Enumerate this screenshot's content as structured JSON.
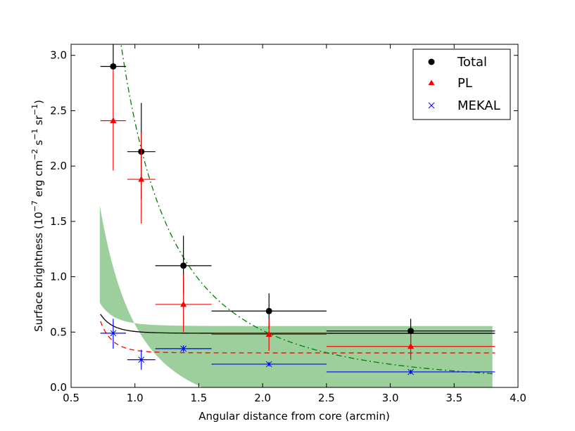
{
  "chart_data": {
    "type": "scatter",
    "xlabel": "Angular distance from core (arcmin)",
    "ylabel_parts": {
      "pre": "Surface brightness (10",
      "exp1": "−7",
      "mid1": " erg cm",
      "exp2": "−2",
      "mid2": " s",
      "exp3": "−1",
      "mid3": " sr",
      "exp4": "−1",
      "post": ")"
    },
    "xlim": [
      0.5,
      4.0
    ],
    "ylim": [
      0.0,
      3.1
    ],
    "xticks": [
      0.5,
      1.0,
      1.5,
      2.0,
      2.5,
      3.0,
      3.5,
      4.0
    ],
    "xtick_labels": [
      "0.5",
      "1.0",
      "1.5",
      "2.0",
      "2.5",
      "3.0",
      "3.5",
      "4.0"
    ],
    "yticks": [
      0.0,
      0.5,
      1.0,
      1.5,
      2.0,
      2.5,
      3.0
    ],
    "ytick_labels": [
      "0.0",
      "0.5",
      "1.0",
      "1.5",
      "2.0",
      "2.5",
      "3.0"
    ],
    "legend_position": "top-right",
    "series": [
      {
        "name": "Total",
        "marker": "circle",
        "color": "#000000",
        "points": [
          {
            "x": 0.83,
            "y": 2.9,
            "xlo": 0.73,
            "xhi": 0.93,
            "ylo": 2.9,
            "yhi": 3.1
          },
          {
            "x": 1.05,
            "y": 2.13,
            "xlo": 0.94,
            "xhi": 1.16,
            "ylo": 1.7,
            "yhi": 2.57
          },
          {
            "x": 1.38,
            "y": 1.1,
            "xlo": 1.16,
            "xhi": 1.6,
            "ylo": 0.85,
            "yhi": 1.37
          },
          {
            "x": 2.05,
            "y": 0.69,
            "xlo": 1.6,
            "xhi": 2.5,
            "ylo": 0.53,
            "yhi": 0.85
          },
          {
            "x": 3.16,
            "y": 0.51,
            "xlo": 2.5,
            "xhi": 3.82,
            "ylo": 0.4,
            "yhi": 0.62
          }
        ]
      },
      {
        "name": "PL",
        "marker": "triangle",
        "color": "#ff0000",
        "points": [
          {
            "x": 0.83,
            "y": 2.41,
            "xlo": 0.73,
            "xhi": 0.93,
            "ylo": 1.96,
            "yhi": 2.87
          },
          {
            "x": 1.05,
            "y": 1.88,
            "xlo": 0.94,
            "xhi": 1.16,
            "ylo": 1.48,
            "yhi": 2.3
          },
          {
            "x": 1.38,
            "y": 0.75,
            "xlo": 1.16,
            "xhi": 1.6,
            "ylo": 0.5,
            "yhi": 1.02
          },
          {
            "x": 2.05,
            "y": 0.48,
            "xlo": 1.6,
            "xhi": 2.5,
            "ylo": 0.33,
            "yhi": 0.62
          },
          {
            "x": 3.16,
            "y": 0.37,
            "xlo": 2.5,
            "xhi": 3.82,
            "ylo": 0.25,
            "yhi": 0.48
          }
        ]
      },
      {
        "name": "MEKAL",
        "marker": "x",
        "color": "#0000ff",
        "points": [
          {
            "x": 0.83,
            "y": 0.49,
            "xlo": 0.73,
            "xhi": 0.93,
            "ylo": 0.35,
            "yhi": 0.62
          },
          {
            "x": 1.05,
            "y": 0.25,
            "xlo": 0.94,
            "xhi": 1.16,
            "ylo": 0.16,
            "yhi": 0.34
          },
          {
            "x": 1.38,
            "y": 0.35,
            "xlo": 1.16,
            "xhi": 1.6,
            "ylo": 0.32,
            "yhi": 0.38
          },
          {
            "x": 2.05,
            "y": 0.21,
            "xlo": 1.6,
            "xhi": 2.5,
            "ylo": 0.19,
            "yhi": 0.23
          },
          {
            "x": 3.16,
            "y": 0.14,
            "xlo": 2.5,
            "xhi": 3.82,
            "ylo": 0.12,
            "yhi": 0.16
          }
        ]
      }
    ],
    "model_curves": [
      {
        "name": "total-model",
        "style": "solid",
        "color": "#000000",
        "x_range": [
          0.73,
          3.82
        ],
        "a": 0.4889,
        "b": 0.01656,
        "n": 7.45
      },
      {
        "name": "pl-model",
        "style": "dashed",
        "color": "#ff0000",
        "x_range": [
          0.73,
          3.82
        ],
        "a": 0.3117,
        "b": 0.02425,
        "n": 7.84
      },
      {
        "name": "mekal-model",
        "style": "dashdot",
        "color": "#008000",
        "x_range": [
          0.73,
          3.82
        ],
        "a": 0.0,
        "b": 2.4,
        "n": 2.22
      }
    ],
    "shaded_band": {
      "color": "#5aaf5a",
      "opacity": 0.6,
      "x_range": [
        0.725,
        3.8
      ],
      "upper": {
        "a": 0.5541,
        "b": 0.026,
        "n": 6.5
      },
      "lower": {
        "a": -0.3,
        "b": 0.8695,
        "n": 2.5
      }
    }
  }
}
